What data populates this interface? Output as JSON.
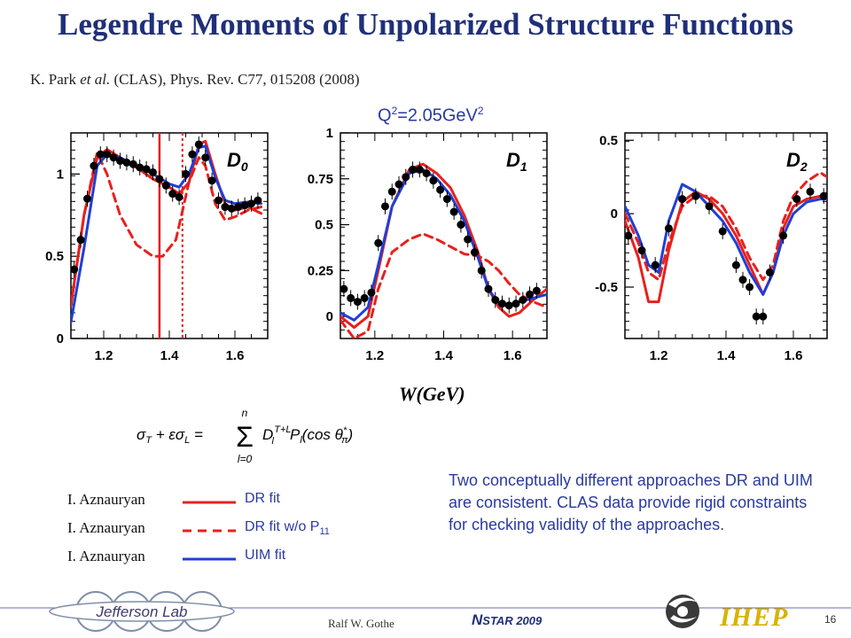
{
  "slide": {
    "title": "Legendre Moments of Unpolarized Structure Functions",
    "reference": {
      "authors": "K. Park ",
      "etal": "et al.",
      "rest": " (CLAS), Phys. Rev. C77, 015208 (2008)"
    },
    "q2_label": {
      "base": "Q",
      "sup": "2",
      "value": "=2.05GeV",
      "sup2": "2"
    },
    "x_axis_label": "W(GeV)",
    "formula": {
      "lhs": "σT + εσL =",
      "sum_top": "n",
      "sum_bottom": "l=0",
      "rhs": "Dl T+L Pl(cos θπ*)"
    },
    "legend": [
      {
        "name": "I. Aznauryan",
        "desc": "DR fit",
        "style": "solid",
        "color": "#e8201e"
      },
      {
        "name": "I. Aznauryan",
        "desc": "DR fit w/o P",
        "sub": "11",
        "style": "dashed",
        "color": "#e8201e"
      },
      {
        "name": "I. Aznauryan",
        "desc": "UIM fit",
        "style": "solid",
        "color": "#1f3fd6"
      }
    ],
    "conclusion": "Two conceptually different approaches DR and UIM are consistent. CLAS data provide rigid constraints for checking validity of the approaches.",
    "footer": {
      "author": "Ralf W. Gothe",
      "event_n": "N",
      "event_rest": "STAR 2009",
      "page": "16",
      "logo_left": "Jefferson Lab",
      "logo_right": "IHEP"
    }
  },
  "colors": {
    "title": "#1f2f7a",
    "text_blue": "#2a3aa0",
    "dr_fit": "#e8201e",
    "uim_fit": "#1f3fd6",
    "logo_gold": "#d7b400"
  },
  "chart_data": [
    {
      "type": "line",
      "panel_label": "D0",
      "xlabel": "W(GeV)",
      "xlim": [
        1.1,
        1.7
      ],
      "ylim": [
        0.0,
        1.25
      ],
      "x_ticks": [
        1.2,
        1.4,
        1.6
      ],
      "y_ticks": [
        0,
        0.5,
        1
      ],
      "vlines": [
        {
          "x": 1.37,
          "style": "solid"
        },
        {
          "x": 1.44,
          "style": "dotted"
        }
      ],
      "points": {
        "x": [
          1.11,
          1.13,
          1.15,
          1.17,
          1.19,
          1.21,
          1.23,
          1.25,
          1.27,
          1.29,
          1.31,
          1.33,
          1.35,
          1.37,
          1.39,
          1.41,
          1.43,
          1.45,
          1.47,
          1.49,
          1.51,
          1.53,
          1.55,
          1.57,
          1.59,
          1.61,
          1.63,
          1.65,
          1.67
        ],
        "y": [
          0.42,
          0.6,
          0.85,
          1.05,
          1.12,
          1.12,
          1.1,
          1.08,
          1.07,
          1.06,
          1.04,
          1.03,
          1.01,
          0.97,
          0.93,
          0.88,
          0.86,
          1.0,
          1.12,
          1.18,
          1.1,
          0.96,
          0.84,
          0.8,
          0.79,
          0.8,
          0.81,
          0.82,
          0.84
        ]
      },
      "series": [
        {
          "name": "DR fit",
          "style": "solid",
          "color": "#e8201e",
          "x": [
            1.1,
            1.14,
            1.18,
            1.21,
            1.25,
            1.3,
            1.35,
            1.4,
            1.43,
            1.46,
            1.49,
            1.51,
            1.54,
            1.57,
            1.6,
            1.64,
            1.68
          ],
          "y": [
            0.2,
            0.75,
            1.1,
            1.15,
            1.1,
            1.04,
            0.97,
            0.92,
            0.88,
            0.95,
            1.18,
            1.2,
            1.0,
            0.82,
            0.78,
            0.8,
            0.76
          ]
        },
        {
          "name": "DR fit w/o P11",
          "style": "dashed",
          "color": "#e8201e",
          "x": [
            1.1,
            1.14,
            1.18,
            1.21,
            1.25,
            1.3,
            1.35,
            1.38,
            1.42,
            1.46,
            1.49,
            1.51,
            1.54,
            1.57,
            1.6,
            1.64,
            1.68
          ],
          "y": [
            0.2,
            0.75,
            1.13,
            1.0,
            0.75,
            0.57,
            0.5,
            0.5,
            0.6,
            0.95,
            1.1,
            1.05,
            0.82,
            0.72,
            0.74,
            0.78,
            0.8
          ]
        },
        {
          "name": "UIM fit",
          "style": "solid",
          "color": "#1f3fd6",
          "x": [
            1.1,
            1.14,
            1.18,
            1.21,
            1.25,
            1.3,
            1.35,
            1.4,
            1.43,
            1.46,
            1.49,
            1.51,
            1.54,
            1.57,
            1.6,
            1.64,
            1.68
          ],
          "y": [
            0.1,
            0.55,
            1.05,
            1.12,
            1.1,
            1.05,
            1.0,
            0.94,
            0.92,
            1.0,
            1.16,
            1.17,
            0.98,
            0.84,
            0.82,
            0.83,
            0.82
          ]
        }
      ]
    },
    {
      "type": "line",
      "panel_label": "D1",
      "xlabel": "W(GeV)",
      "xlim": [
        1.1,
        1.7
      ],
      "ylim": [
        -0.12,
        1.0
      ],
      "x_ticks": [
        1.2,
        1.4,
        1.6
      ],
      "y_ticks": [
        0,
        0.25,
        0.5,
        0.75,
        1
      ],
      "points": {
        "x": [
          1.11,
          1.13,
          1.15,
          1.17,
          1.19,
          1.21,
          1.23,
          1.25,
          1.27,
          1.29,
          1.31,
          1.33,
          1.35,
          1.37,
          1.39,
          1.41,
          1.43,
          1.45,
          1.47,
          1.49,
          1.51,
          1.53,
          1.55,
          1.57,
          1.59,
          1.61,
          1.63,
          1.65,
          1.67
        ],
        "y": [
          0.15,
          0.1,
          0.08,
          0.1,
          0.13,
          0.4,
          0.6,
          0.68,
          0.72,
          0.76,
          0.8,
          0.8,
          0.78,
          0.74,
          0.69,
          0.64,
          0.57,
          0.5,
          0.42,
          0.35,
          0.25,
          0.15,
          0.09,
          0.07,
          0.06,
          0.07,
          0.09,
          0.12,
          0.14
        ]
      },
      "series": [
        {
          "name": "DR fit",
          "style": "solid",
          "color": "#e8201e",
          "x": [
            1.1,
            1.14,
            1.18,
            1.21,
            1.25,
            1.3,
            1.34,
            1.38,
            1.42,
            1.46,
            1.5,
            1.53,
            1.56,
            1.59,
            1.62,
            1.66,
            1.7
          ],
          "y": [
            0.0,
            -0.06,
            0.0,
            0.25,
            0.6,
            0.8,
            0.83,
            0.78,
            0.7,
            0.55,
            0.35,
            0.15,
            0.05,
            0.0,
            0.02,
            0.09,
            0.15
          ]
        },
        {
          "name": "DR fit w/o P11",
          "style": "dashed",
          "color": "#e8201e",
          "x": [
            1.1,
            1.14,
            1.18,
            1.21,
            1.25,
            1.3,
            1.34,
            1.38,
            1.42,
            1.46,
            1.5,
            1.53,
            1.56,
            1.59,
            1.62,
            1.66,
            1.7
          ],
          "y": [
            -0.02,
            -0.12,
            -0.08,
            0.15,
            0.35,
            0.42,
            0.45,
            0.42,
            0.38,
            0.34,
            0.33,
            0.3,
            0.25,
            0.18,
            0.12,
            0.08,
            0.05
          ]
        },
        {
          "name": "UIM fit",
          "style": "solid",
          "color": "#1f3fd6",
          "x": [
            1.1,
            1.14,
            1.18,
            1.21,
            1.25,
            1.3,
            1.34,
            1.38,
            1.42,
            1.46,
            1.5,
            1.53,
            1.56,
            1.59,
            1.62,
            1.66,
            1.7
          ],
          "y": [
            0.02,
            -0.02,
            0.05,
            0.28,
            0.6,
            0.78,
            0.8,
            0.75,
            0.66,
            0.52,
            0.32,
            0.15,
            0.07,
            0.06,
            0.08,
            0.1,
            0.12
          ]
        }
      ]
    },
    {
      "type": "line",
      "panel_label": "D2",
      "xlabel": "W(GeV)",
      "xlim": [
        1.1,
        1.7
      ],
      "ylim": [
        -0.85,
        0.55
      ],
      "x_ticks": [
        1.2,
        1.4,
        1.6
      ],
      "y_ticks": [
        -0.5,
        0,
        0.5
      ],
      "points": {
        "x": [
          1.11,
          1.15,
          1.19,
          1.23,
          1.27,
          1.31,
          1.35,
          1.39,
          1.43,
          1.45,
          1.47,
          1.49,
          1.51,
          1.53,
          1.57,
          1.61,
          1.65,
          1.69
        ],
        "y": [
          -0.15,
          -0.25,
          -0.35,
          -0.1,
          0.1,
          0.12,
          0.05,
          -0.12,
          -0.35,
          -0.45,
          -0.5,
          -0.7,
          -0.7,
          -0.4,
          -0.15,
          0.1,
          0.15,
          0.12
        ]
      },
      "series": [
        {
          "name": "DR fit",
          "style": "solid",
          "color": "#e8201e",
          "x": [
            1.1,
            1.14,
            1.17,
            1.2,
            1.23,
            1.27,
            1.31,
            1.35,
            1.39,
            1.43,
            1.47,
            1.51,
            1.54,
            1.57,
            1.6,
            1.64,
            1.68,
            1.7
          ],
          "y": [
            -0.05,
            -0.3,
            -0.6,
            -0.6,
            -0.25,
            0.08,
            0.15,
            0.1,
            0.0,
            -0.15,
            -0.35,
            -0.55,
            -0.4,
            -0.1,
            0.05,
            0.1,
            0.12,
            0.1
          ]
        },
        {
          "name": "DR fit w/o P11",
          "style": "dashed",
          "color": "#e8201e",
          "x": [
            1.1,
            1.14,
            1.17,
            1.2,
            1.23,
            1.27,
            1.31,
            1.35,
            1.39,
            1.43,
            1.47,
            1.51,
            1.54,
            1.57,
            1.6,
            1.64,
            1.68,
            1.7
          ],
          "y": [
            0.0,
            -0.2,
            -0.4,
            -0.45,
            -0.2,
            0.05,
            0.12,
            0.12,
            0.05,
            -0.1,
            -0.3,
            -0.45,
            -0.35,
            -0.05,
            0.12,
            0.22,
            0.28,
            0.25
          ]
        },
        {
          "name": "UIM fit",
          "style": "solid",
          "color": "#1f3fd6",
          "x": [
            1.1,
            1.14,
            1.17,
            1.2,
            1.23,
            1.27,
            1.31,
            1.35,
            1.39,
            1.43,
            1.47,
            1.51,
            1.54,
            1.57,
            1.6,
            1.64,
            1.68,
            1.7
          ],
          "y": [
            0.05,
            -0.15,
            -0.35,
            -0.4,
            -0.05,
            0.2,
            0.15,
            0.05,
            -0.05,
            -0.2,
            -0.4,
            -0.55,
            -0.4,
            -0.15,
            0.0,
            0.08,
            0.1,
            0.1
          ]
        }
      ]
    }
  ]
}
